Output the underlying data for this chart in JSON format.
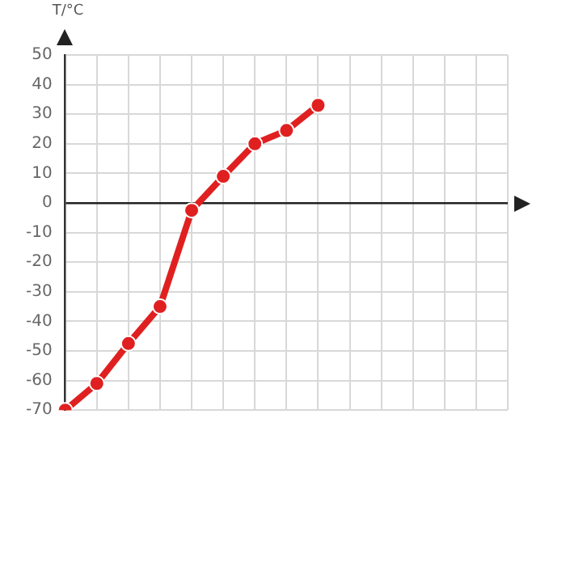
{
  "chart_data": {
    "type": "line",
    "ylabel": "T/°C",
    "categories": [
      null,
      null,
      null,
      null,
      null,
      null,
      null,
      null,
      null,
      null,
      null,
      null,
      null,
      null,
      null
    ],
    "series": [
      {
        "color": "#e02020",
        "values": [
          -70,
          -61,
          -47.5,
          -35,
          -2.5,
          9,
          20,
          24.5,
          33,
          null,
          null,
          null,
          null,
          null,
          null
        ]
      }
    ],
    "ylim": [
      -70,
      50
    ],
    "yticks": [
      -70,
      -60,
      -50,
      -40,
      -30,
      -20,
      -10,
      0,
      10,
      20,
      30,
      40,
      50
    ],
    "grid": true,
    "legend": false,
    "marker": "circle",
    "line_style": "solid"
  }
}
